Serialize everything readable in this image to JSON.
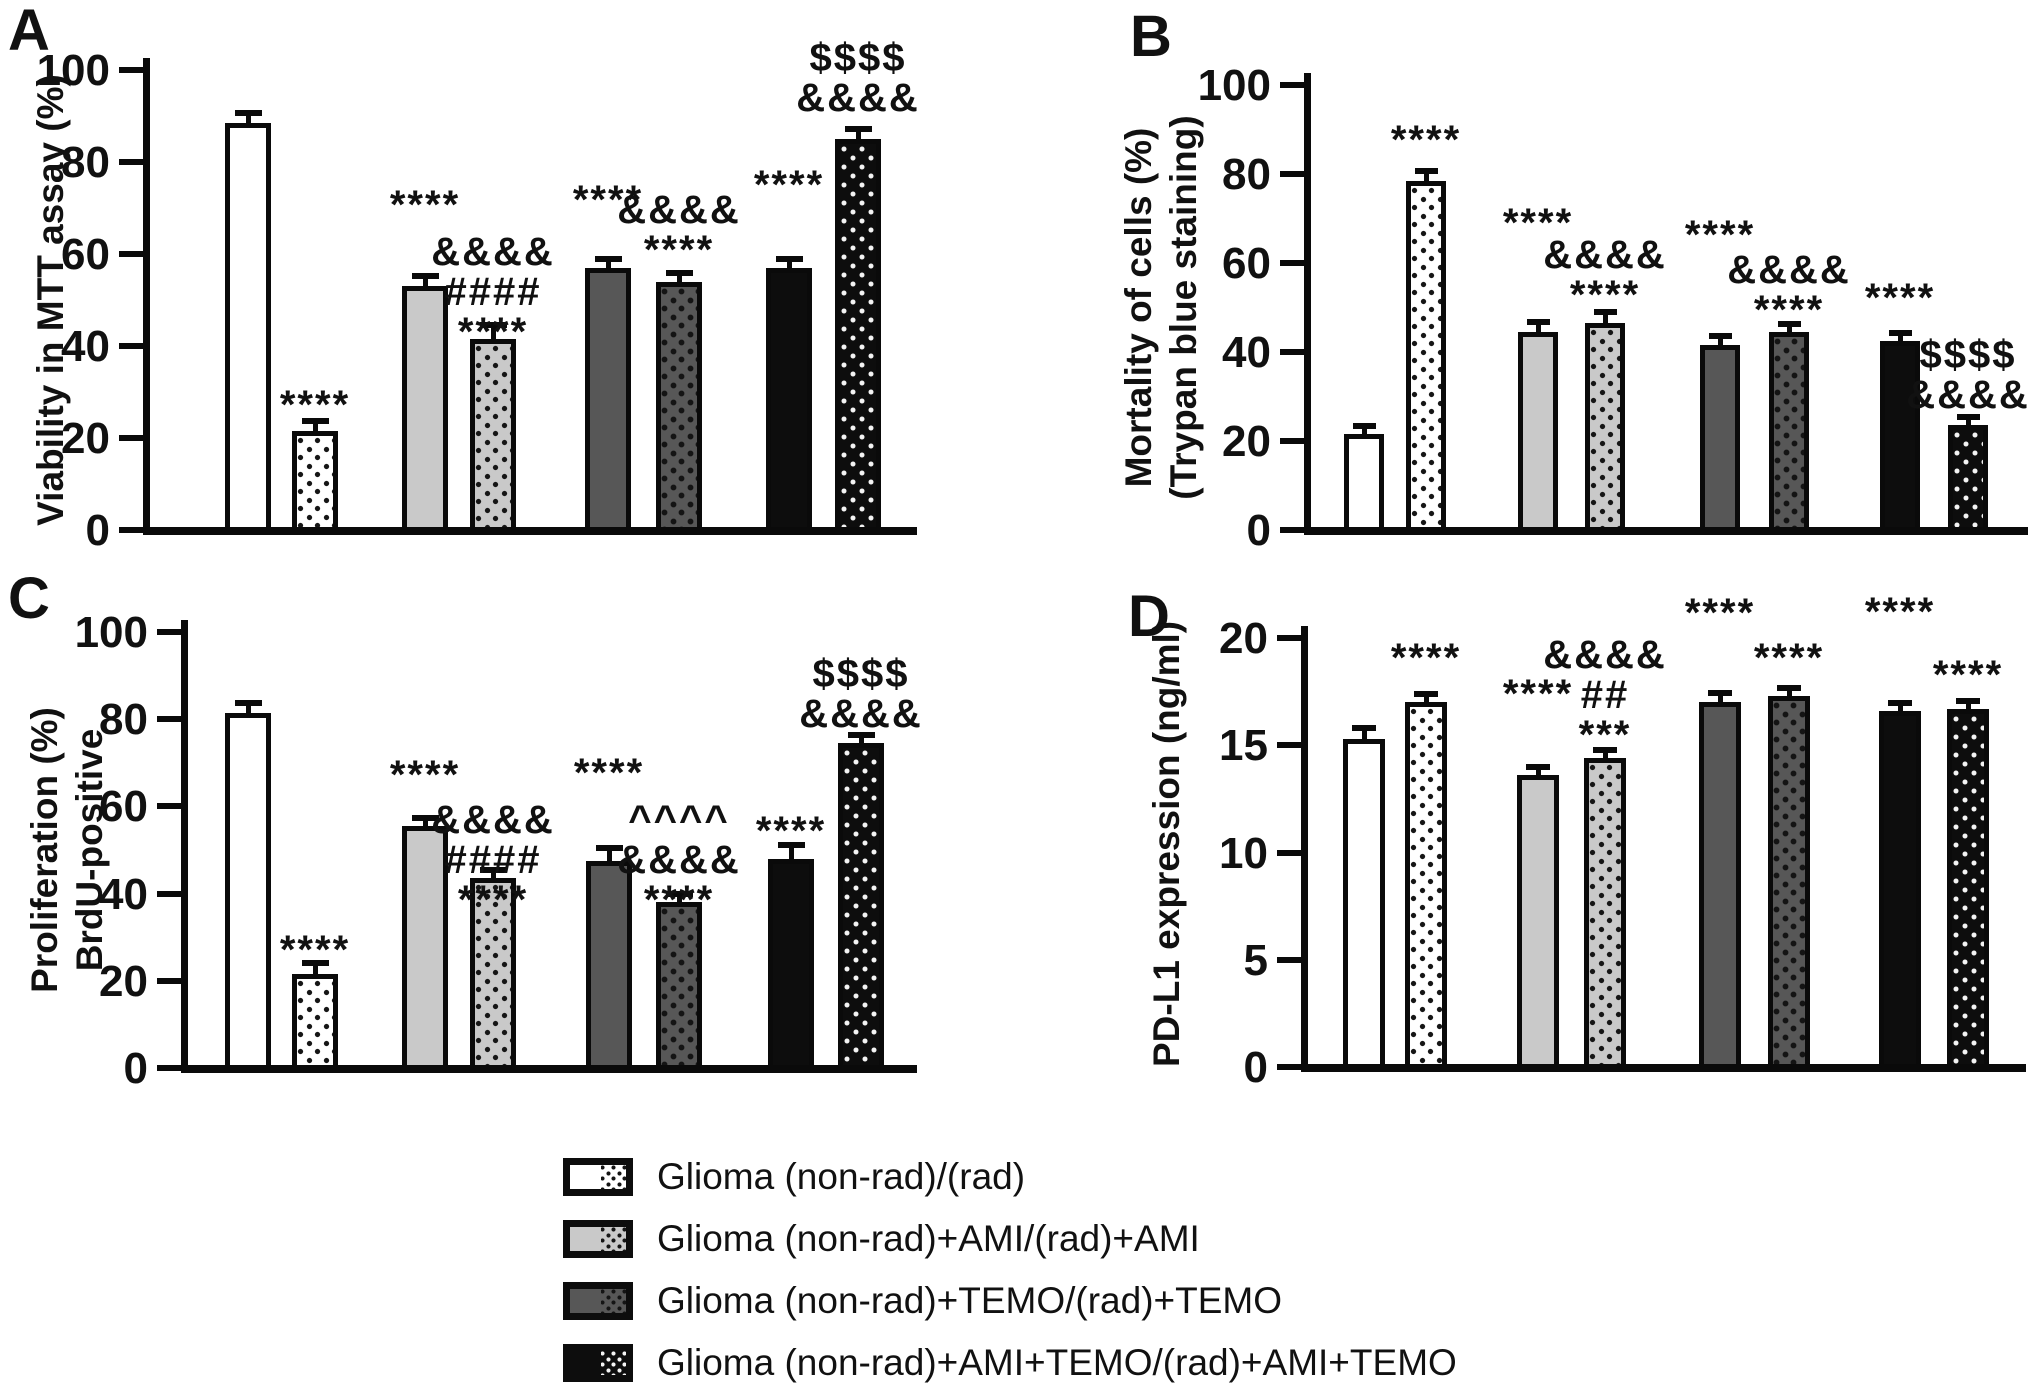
{
  "colors": {
    "white": "#ffffff",
    "light_gray": "#c9c9c9",
    "dark_gray": "#575757",
    "black": "#0d0d0d",
    "axis": "#0a0a0a"
  },
  "legend": {
    "items": [
      {
        "label": "Glioma (non-rad)/(rad)",
        "fill": "#ffffff",
        "dot": "#151515"
      },
      {
        "label": "Glioma (non-rad)+AMI/(rad)+AMI",
        "fill": "#c9c9c9",
        "dot": "#151515"
      },
      {
        "label": "Glioma (non-rad)+TEMO/(rad)+TEMO",
        "fill": "#575757",
        "dot": "#141414"
      },
      {
        "label": "Glioma (non-rad)+AMI+TEMO/(rad)+AMI+TEMO",
        "fill": "#0d0d0d",
        "dot": "#f4f4f4"
      }
    ]
  },
  "chart_data": [
    {
      "panel": "A",
      "type": "bar",
      "title": "",
      "xlabel": "",
      "ylabel_lines": [
        "Viability in MTT assay (%)"
      ],
      "ylim": [
        0,
        100
      ],
      "yticks": [
        0,
        20,
        40,
        60,
        80,
        100
      ],
      "grid": false,
      "legend_position": "bottom",
      "categories": [
        "non-rad",
        "rad",
        "non-rad+AMI",
        "rad+AMI",
        "non-rad+TEMO",
        "rad+TEMO",
        "non-rad+AMI+TEMO",
        "rad+AMI+TEMO"
      ],
      "values": [
        88.5,
        21.5,
        53,
        41.5,
        57,
        54,
        57,
        85
      ],
      "errors": [
        1.5,
        1.5,
        1.5,
        2.5,
        1.2,
        1.2,
        1.2,
        1.5
      ],
      "annotations": [
        [],
        [
          "****"
        ],
        [
          "****"
        ],
        [
          "&&&&",
          "####",
          "****"
        ],
        [
          "****"
        ],
        [
          "&&&&",
          "****"
        ],
        [
          "****"
        ],
        [
          "$$$$",
          "&&&&"
        ]
      ]
    },
    {
      "panel": "B",
      "type": "bar",
      "title": "",
      "xlabel": "",
      "ylabel_lines": [
        "Mortality of cells (%)",
        "(Trypan blue staining)"
      ],
      "ylim": [
        0,
        100
      ],
      "yticks": [
        0,
        20,
        40,
        60,
        80,
        100
      ],
      "grid": false,
      "legend_position": "bottom",
      "categories": [
        "non-rad",
        "rad",
        "non-rad+AMI",
        "rad+AMI",
        "non-rad+TEMO",
        "rad+TEMO",
        "non-rad+AMI+TEMO",
        "rad+AMI+TEMO"
      ],
      "values": [
        21.5,
        78.5,
        44.5,
        46.5,
        41.5,
        44.5,
        42.5,
        23.5
      ],
      "errors": [
        1.2,
        1.5,
        1.5,
        1.8,
        1.5,
        1.2,
        1.2,
        1.2
      ],
      "annotations": [
        [],
        [
          "****"
        ],
        [
          "****"
        ],
        [
          "&&&&",
          "****"
        ],
        [
          "****"
        ],
        [
          "&&&&",
          "****"
        ],
        [
          "****"
        ],
        [
          "$$$$",
          "&&&&"
        ]
      ]
    },
    {
      "panel": "C",
      "type": "bar",
      "title": "",
      "xlabel": "",
      "ylabel_lines": [
        "Proliferation (%)",
        "BrdU-positive"
      ],
      "ylim": [
        0,
        100
      ],
      "yticks": [
        0,
        20,
        40,
        60,
        80,
        100
      ],
      "grid": false,
      "legend_position": "bottom",
      "categories": [
        "non-rad",
        "rad",
        "non-rad+AMI",
        "rad+AMI",
        "non-rad+TEMO",
        "rad+TEMO",
        "non-rad+AMI+TEMO",
        "rad+AMI+TEMO"
      ],
      "values": [
        81.5,
        21.5,
        55.5,
        43.5,
        47.5,
        38,
        48,
        74.5
      ],
      "errors": [
        1.5,
        1.8,
        1.2,
        1.2,
        2.2,
        1.2,
        2.5,
        1.2
      ],
      "annotations": [
        [],
        [
          "****"
        ],
        [
          "****"
        ],
        [
          "&&&&",
          "####",
          "****"
        ],
        [
          "****"
        ],
        [
          "^^^^",
          "&&&&",
          "****"
        ],
        [
          "****"
        ],
        [
          "$$$$",
          "&&&&"
        ]
      ]
    },
    {
      "panel": "D",
      "type": "bar",
      "title": "",
      "xlabel": "",
      "ylabel_lines": [
        "PD-L1 expression (ng/ml)"
      ],
      "ylim": [
        0,
        20
      ],
      "yticks": [
        0,
        5,
        10,
        15,
        20
      ],
      "grid": false,
      "legend_position": "bottom",
      "categories": [
        "non-rad",
        "rad",
        "non-rad+AMI",
        "rad+AMI",
        "non-rad+TEMO",
        "rad+TEMO",
        "non-rad+AMI+TEMO",
        "rad+AMI+TEMO"
      ],
      "values": [
        15.3,
        17.0,
        13.6,
        14.4,
        17.0,
        17.3,
        16.6,
        16.7
      ],
      "errors": [
        0.35,
        0.25,
        0.2,
        0.25,
        0.3,
        0.25,
        0.15,
        0.15
      ],
      "annotations": [
        [],
        [
          "****"
        ],
        [
          "****"
        ],
        [
          "&&&&",
          "##",
          "***"
        ],
        [
          "****"
        ],
        [
          "****"
        ],
        [
          "****"
        ],
        [
          "****"
        ]
      ]
    }
  ]
}
